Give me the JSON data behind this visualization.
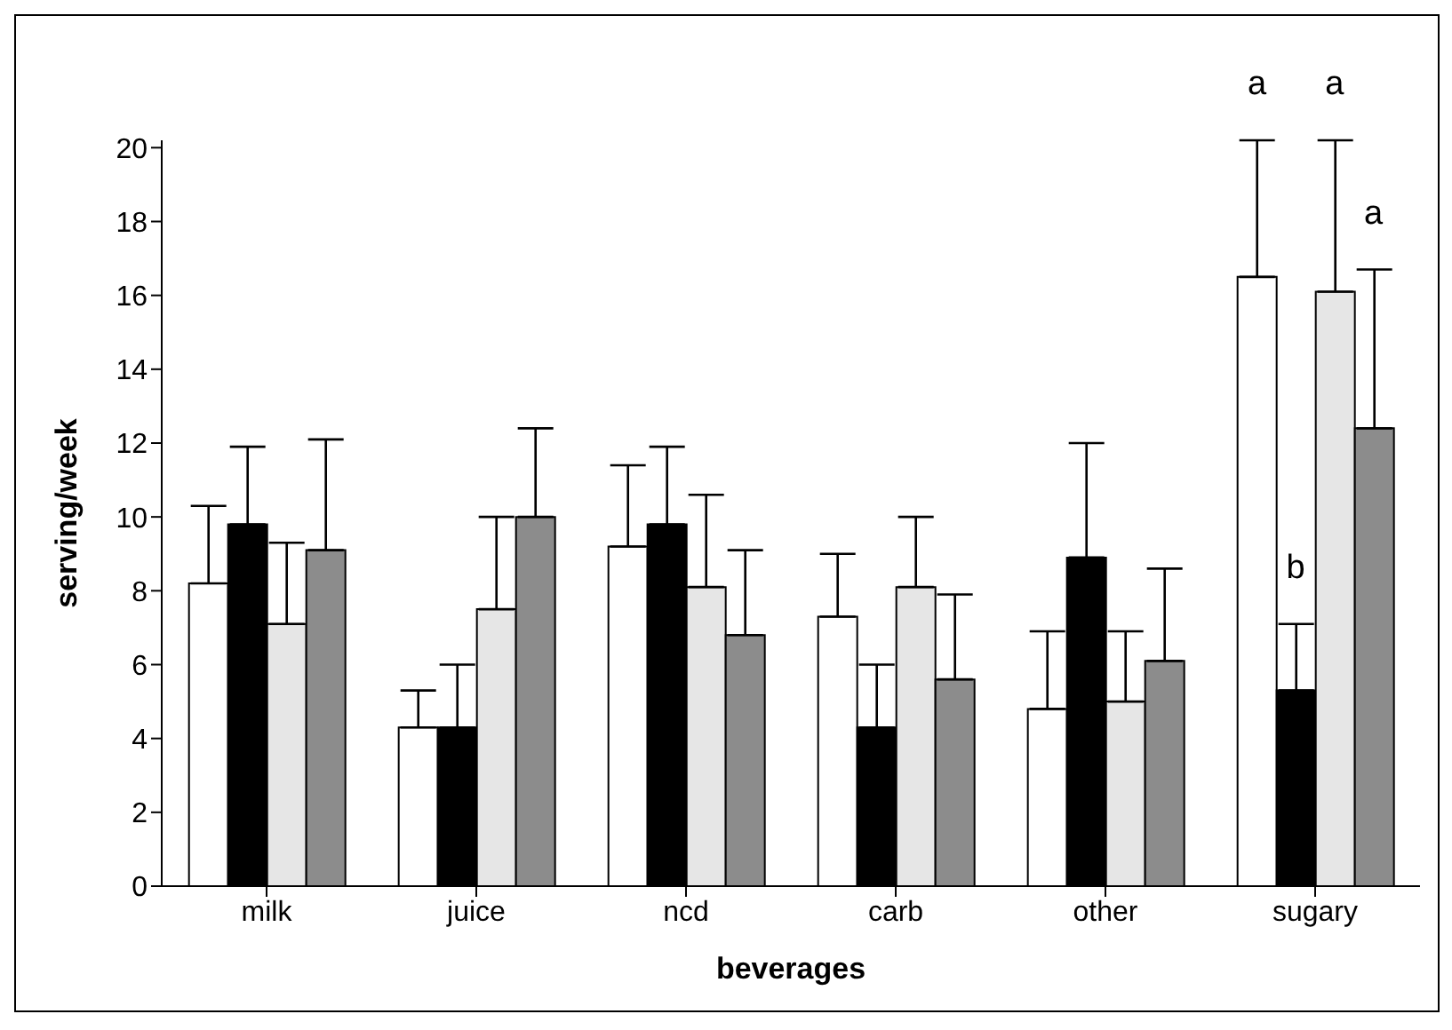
{
  "chart_data": {
    "type": "bar",
    "xlabel": "beverages",
    "ylabel": "serving/week",
    "categories": [
      "milk",
      "juice",
      "ncd",
      "carb",
      "other",
      "sugary"
    ],
    "series": [
      {
        "color": "#ffffff",
        "values": [
          8.2,
          4.3,
          9.2,
          7.3,
          4.8,
          16.5
        ],
        "errors": [
          [
            8.2,
            10.3
          ],
          [
            4.3,
            5.3
          ],
          [
            9.2,
            11.4
          ],
          [
            7.3,
            9.0
          ],
          [
            4.8,
            6.9
          ],
          [
            16.5,
            20.2
          ]
        ]
      },
      {
        "color": "#000000",
        "values": [
          9.8,
          4.3,
          9.8,
          4.3,
          8.9,
          5.3
        ],
        "errors": [
          [
            9.8,
            11.9
          ],
          [
            4.3,
            6.0
          ],
          [
            9.8,
            11.9
          ],
          [
            4.3,
            6.0
          ],
          [
            8.9,
            12.0
          ],
          [
            5.3,
            7.1
          ]
        ]
      },
      {
        "color": "#e6e6e6",
        "values": [
          7.1,
          7.5,
          8.1,
          8.1,
          5.0,
          16.1
        ],
        "errors": [
          [
            7.1,
            9.3
          ],
          [
            7.5,
            10.0
          ],
          [
            8.1,
            10.6
          ],
          [
            8.1,
            10.0
          ],
          [
            5.0,
            6.9
          ],
          [
            16.1,
            20.2
          ]
        ]
      },
      {
        "color": "#8c8c8c",
        "values": [
          9.1,
          10.0,
          6.8,
          5.6,
          6.1,
          12.4
        ],
        "errors": [
          [
            9.1,
            12.1
          ],
          [
            10.0,
            12.4
          ],
          [
            6.8,
            9.1
          ],
          [
            5.6,
            7.9
          ],
          [
            6.1,
            8.6
          ],
          [
            12.4,
            16.7
          ]
        ]
      }
    ],
    "ylim": [
      0,
      20.2
    ],
    "yticks": [
      0,
      2,
      4,
      6,
      8,
      10,
      12,
      14,
      16,
      18,
      20
    ],
    "annotations": [
      "a",
      "b",
      "a",
      "a"
    ],
    "grid": false,
    "legend": false
  }
}
